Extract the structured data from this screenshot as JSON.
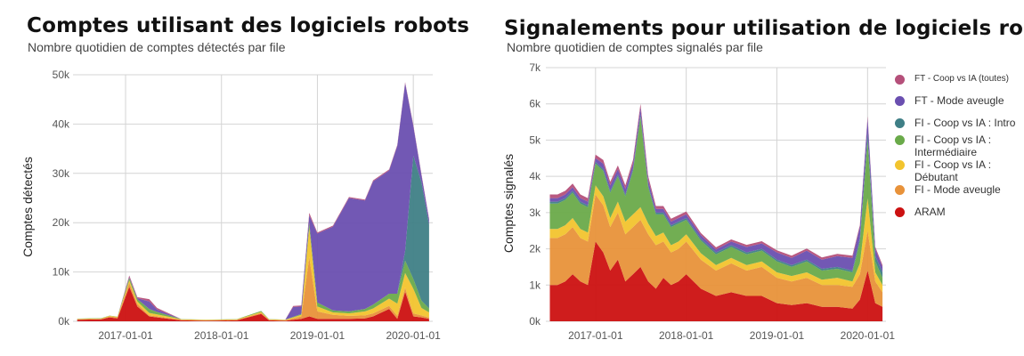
{
  "chart_data": [
    {
      "type": "area",
      "stacked": true,
      "title": "Comptes utilisant des logiciels robots",
      "subtitle": "Nombre quotidien de comptes détectés par file",
      "xlabel": "",
      "ylabel": "Comptes détectés",
      "ylim": [
        0,
        50000
      ],
      "y_ticks": [
        "0k",
        "10k",
        "20k",
        "30k",
        "40k",
        "50k"
      ],
      "x_ticks": [
        "2017-01-01",
        "2018-01-01",
        "2019-01-01",
        "2020-01-01"
      ],
      "grid": true,
      "x": [
        "2016-07-01",
        "2016-10-01",
        "2016-11-01",
        "2016-12-01",
        "2017-01-15",
        "2017-02-15",
        "2017-04-01",
        "2017-05-01",
        "2017-08-01",
        "2017-11-01",
        "2018-03-01",
        "2018-06-01",
        "2018-07-01",
        "2018-09-01",
        "2018-10-01",
        "2018-11-01",
        "2018-12-01",
        "2019-01-01",
        "2019-03-01",
        "2019-05-01",
        "2019-07-01",
        "2019-08-01",
        "2019-10-01",
        "2019-11-01",
        "2019-12-01",
        "2020-01-01",
        "2020-02-01",
        "2020-03-01"
      ],
      "series": [
        {
          "name": "ARAM",
          "color": "#cc1111",
          "values": [
            300,
            400,
            800,
            600,
            7000,
            3000,
            1000,
            800,
            200,
            100,
            200,
            1500,
            200,
            100,
            300,
            500,
            1000,
            500,
            500,
            500,
            600,
            1000,
            2500,
            500,
            6000,
            1000,
            800,
            500
          ]
        },
        {
          "name": "FI - Mode aveugle",
          "color": "#e8923a",
          "values": [
            100,
            100,
            200,
            200,
            800,
            500,
            200,
            200,
            100,
            100,
            100,
            200,
            100,
            100,
            300,
            500,
            12000,
            1500,
            800,
            600,
            600,
            600,
            600,
            600,
            800,
            600,
            400,
            300
          ]
        },
        {
          "name": "FI - Coop vs IA : Débutant",
          "color": "#f2c42e",
          "values": [
            100,
            100,
            100,
            100,
            500,
            500,
            500,
            400,
            100,
            100,
            100,
            200,
            100,
            100,
            200,
            300,
            6000,
            1000,
            500,
            500,
            800,
            1000,
            1500,
            2500,
            3000,
            5000,
            1500,
            1000
          ]
        },
        {
          "name": "FI - Coop vs IA : Intermédiaire",
          "color": "#6aaa4a",
          "values": [
            50,
            50,
            50,
            50,
            500,
            500,
            800,
            500,
            50,
            50,
            50,
            200,
            50,
            50,
            100,
            200,
            1000,
            800,
            400,
            400,
            500,
            800,
            1000,
            2000,
            2500,
            2000,
            1500,
            800
          ]
        },
        {
          "name": "FI - Coop vs IA : Intro",
          "color": "#3f7f86",
          "values": [
            0,
            0,
            0,
            0,
            0,
            0,
            0,
            0,
            0,
            0,
            0,
            0,
            0,
            0,
            0,
            0,
            0,
            0,
            0,
            0,
            0,
            0,
            0,
            0,
            2000,
            25000,
            24000,
            17000
          ]
        },
        {
          "name": "FT - Mode aveugle",
          "color": "#6a4fb0",
          "values": [
            0,
            0,
            0,
            0,
            200,
            200,
            1500,
            500,
            0,
            0,
            0,
            0,
            0,
            0,
            2000,
            1500,
            1500,
            14000,
            17000,
            23000,
            22000,
            25000,
            25000,
            30000,
            34000,
            6000,
            1500,
            1000
          ]
        },
        {
          "name": "FT - Coop vs IA (toutes)",
          "color": "#b5507a",
          "values": [
            0,
            0,
            0,
            0,
            300,
            200,
            500,
            300,
            0,
            0,
            0,
            0,
            0,
            0,
            200,
            200,
            500,
            200,
            200,
            200,
            200,
            200,
            200,
            200,
            200,
            200,
            200,
            200
          ]
        }
      ]
    },
    {
      "type": "area",
      "stacked": true,
      "title": "Signalements pour utilisation de logiciels robots",
      "subtitle": "Nombre quotidien de comptes signalés par file",
      "xlabel": "",
      "ylabel": "Comptes signalés",
      "ylim": [
        0,
        7000
      ],
      "y_ticks": [
        "0k",
        "1k",
        "2k",
        "3k",
        "4k",
        "5k",
        "6k",
        "7k"
      ],
      "x_ticks": [
        "2017-01-01",
        "2018-01-01",
        "2019-01-01",
        "2020-01-01"
      ],
      "grid": true,
      "legend": "right",
      "x": [
        "2016-07-01",
        "2016-08-01",
        "2016-09-01",
        "2016-10-01",
        "2016-11-01",
        "2016-12-01",
        "2017-01-01",
        "2017-02-01",
        "2017-03-01",
        "2017-04-01",
        "2017-05-01",
        "2017-06-01",
        "2017-07-01",
        "2017-08-01",
        "2017-09-01",
        "2017-10-01",
        "2017-11-01",
        "2017-12-01",
        "2018-01-01",
        "2018-03-01",
        "2018-05-01",
        "2018-07-01",
        "2018-09-01",
        "2018-11-01",
        "2019-01-01",
        "2019-03-01",
        "2019-05-01",
        "2019-07-01",
        "2019-09-01",
        "2019-11-01",
        "2019-12-01",
        "2020-01-01",
        "2020-02-01",
        "2020-03-01"
      ],
      "series": [
        {
          "name": "ARAM",
          "color": "#cc1111",
          "values": [
            1000,
            1000,
            1100,
            1300,
            1100,
            1000,
            2200,
            1900,
            1400,
            1700,
            1100,
            1300,
            1500,
            1100,
            900,
            1200,
            1000,
            1100,
            1300,
            900,
            700,
            800,
            700,
            700,
            500,
            450,
            500,
            400,
            400,
            350,
            600,
            1400,
            500,
            400
          ]
        },
        {
          "name": "FI - Mode aveugle",
          "color": "#e8923a",
          "values": [
            1300,
            1300,
            1300,
            1300,
            1200,
            1200,
            1300,
            1300,
            1200,
            1300,
            1300,
            1300,
            1300,
            1300,
            1200,
            1000,
            900,
            900,
            900,
            800,
            700,
            800,
            700,
            800,
            700,
            650,
            700,
            600,
            600,
            600,
            700,
            1100,
            600,
            400
          ]
        },
        {
          "name": "FI - Coop vs IA : Débutant",
          "color": "#f2c42e",
          "values": [
            250,
            250,
            250,
            250,
            250,
            250,
            250,
            250,
            250,
            300,
            350,
            350,
            350,
            300,
            250,
            250,
            200,
            200,
            200,
            180,
            150,
            150,
            150,
            150,
            150,
            150,
            150,
            150,
            200,
            150,
            300,
            900,
            250,
            200
          ]
        },
        {
          "name": "FI - Coop vs IA : Intermédiaire",
          "color": "#6aaa4a",
          "values": [
            700,
            700,
            700,
            700,
            700,
            700,
            600,
            700,
            700,
            700,
            700,
            1200,
            2500,
            1000,
            600,
            500,
            500,
            500,
            400,
            350,
            300,
            300,
            300,
            300,
            300,
            250,
            300,
            250,
            250,
            250,
            600,
            1600,
            300,
            200
          ]
        },
        {
          "name": "FI - Coop vs IA : Intro",
          "color": "#3f7f86",
          "values": [
            50,
            50,
            50,
            50,
            50,
            50,
            50,
            50,
            50,
            50,
            50,
            50,
            50,
            50,
            50,
            50,
            50,
            50,
            50,
            50,
            50,
            50,
            50,
            50,
            50,
            50,
            50,
            50,
            50,
            50,
            100,
            200,
            150,
            150
          ]
        },
        {
          "name": "FT - Mode aveugle",
          "color": "#6a4fb0",
          "values": [
            100,
            100,
            100,
            100,
            100,
            100,
            100,
            150,
            150,
            150,
            150,
            150,
            200,
            150,
            100,
            100,
            100,
            100,
            100,
            100,
            80,
            100,
            150,
            150,
            200,
            200,
            250,
            250,
            300,
            350,
            300,
            400,
            200,
            150
          ]
        },
        {
          "name": "FT - Coop vs IA (toutes)",
          "color": "#b5507a",
          "values": [
            100,
            100,
            100,
            100,
            100,
            100,
            100,
            100,
            100,
            100,
            100,
            100,
            100,
            100,
            80,
            80,
            80,
            80,
            80,
            60,
            60,
            60,
            60,
            60,
            60,
            60,
            60,
            60,
            60,
            60,
            60,
            60,
            50,
            50
          ]
        }
      ]
    }
  ],
  "legend": {
    "items": [
      {
        "label": "FT - Coop vs IA (toutes)",
        "color": "#b5507a"
      },
      {
        "label": "FT - Mode aveugle",
        "color": "#6a4fb0"
      },
      {
        "label": "FI - Coop vs IA  : Intro",
        "color": "#3f7f86"
      },
      {
        "label": "FI - Coop vs IA  : Intermédiaire",
        "color": "#6aaa4a"
      },
      {
        "label": "FI - Coop vs IA  : Débutant",
        "color": "#f2c42e"
      },
      {
        "label": "FI - Mode aveugle",
        "color": "#e8923a"
      },
      {
        "label": "ARAM",
        "color": "#cc1111"
      }
    ]
  }
}
